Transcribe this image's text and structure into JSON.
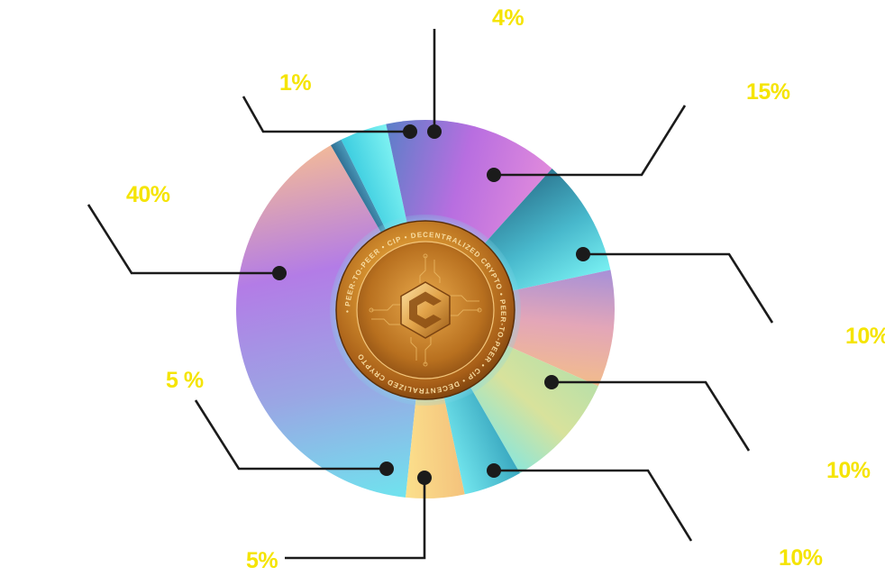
{
  "chart_data": {
    "type": "pie",
    "slices": [
      {
        "label": "40%",
        "value": 40,
        "colors": [
          "#6fe3ee",
          "#9aa6e4",
          "#b37ce6",
          "#f1b89a"
        ]
      },
      {
        "label": "1%",
        "value": 1,
        "colors": [
          "#2f6f93",
          "#4b98b8"
        ]
      },
      {
        "label": "4%",
        "value": 4,
        "colors": [
          "#3ccde0",
          "#7ff2f2"
        ]
      },
      {
        "label": "15%",
        "value": 15,
        "colors": [
          "#5b7fc8",
          "#b86ee0",
          "#e08adc"
        ]
      },
      {
        "label": "10%",
        "value": 10,
        "colors": [
          "#2e7c96",
          "#48b8cc",
          "#78f0f2"
        ]
      },
      {
        "label": "10%",
        "value": 10,
        "colors": [
          "#a690d8",
          "#e3a6b8",
          "#f2bc8c"
        ]
      },
      {
        "label": "10%",
        "value": 10,
        "colors": [
          "#b9e0a8",
          "#d8e29c",
          "#8ee6d8"
        ]
      },
      {
        "label": "5%",
        "value": 5,
        "colors": [
          "#3aa8c0",
          "#72e6ee"
        ]
      },
      {
        "label": "5 %",
        "value": 5,
        "colors": [
          "#f4c27c",
          "#fbe08c"
        ]
      }
    ]
  },
  "coin": {
    "ring_text": "• PEER-TO-PEER • CIP • DECENTRALIZED CRYPTO • PEER-TO-PEER • CIP • DECENTRALIZED CRYPTO",
    "logo": "hexagon-c-logo"
  },
  "colors": {
    "label": "#f5e400",
    "leader": "#1b1b1b",
    "coin_gold": "#d08a2a"
  }
}
